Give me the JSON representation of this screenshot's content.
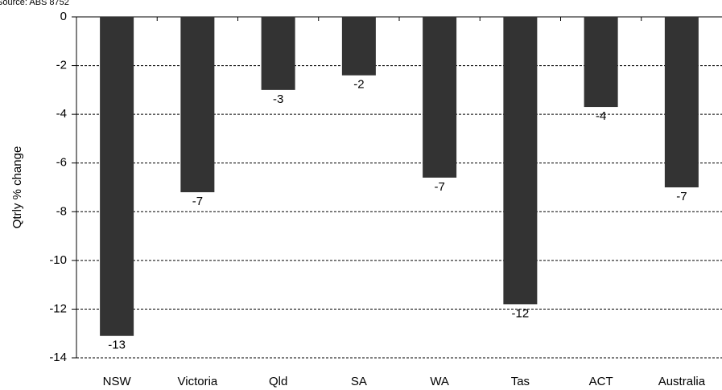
{
  "chart_data": {
    "type": "bar",
    "source": "Source: ABS 8752",
    "y_label": "Qtrly % change",
    "categories": [
      "NSW",
      "Victoria",
      "Qld",
      "SA",
      "WA",
      "Tas",
      "ACT",
      "Australia"
    ],
    "values": [
      -13.1,
      -7.2,
      -3.0,
      -2.4,
      -6.6,
      -11.8,
      -3.7,
      -7.0
    ],
    "value_labels": [
      "-13",
      "-7",
      "-3",
      "-2",
      "-7",
      "-12",
      "-4",
      "-7"
    ],
    "color": "#333333",
    "ylim": [
      -14,
      0
    ],
    "yticks": [
      0,
      -2,
      -4,
      -6,
      -8,
      -10,
      -12,
      -14
    ],
    "grid": true
  }
}
